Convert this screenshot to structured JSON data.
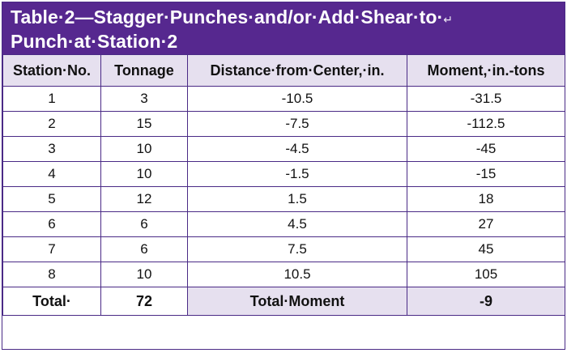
{
  "title": {
    "text": "Table 2—Stagger Punches and/or Add Shear to Punch at Station 2",
    "line1": "Table·2—Stagger·Punches·and/or·Add·Shear·to·",
    "line2": "Punch·at·Station·2",
    "return_mark": "↵"
  },
  "headers": [
    "Station·No.",
    "Tonnage",
    "Distance·from·Center,·in.",
    "Moment,·in.-tons"
  ],
  "rows": [
    [
      "1",
      "3",
      "-10.5",
      "-31.5"
    ],
    [
      "2",
      "15",
      "-7.5",
      "-112.5"
    ],
    [
      "3",
      "10",
      "-4.5",
      "-45"
    ],
    [
      "4",
      "10",
      "-1.5",
      "-15"
    ],
    [
      "5",
      "12",
      "1.5",
      "18"
    ],
    [
      "6",
      "6",
      "4.5",
      "27"
    ],
    [
      "7",
      "6",
      "7.5",
      "45"
    ],
    [
      "8",
      "10",
      "10.5",
      "105"
    ]
  ],
  "footer": {
    "total_label": "Total·",
    "total_tonnage": "72",
    "total_moment_label": "Total·Moment",
    "total_moment_value": "-9"
  },
  "colors": {
    "title_bg": "#56288f",
    "header_bg": "#e6e0ef",
    "border": "#4a2a86"
  }
}
